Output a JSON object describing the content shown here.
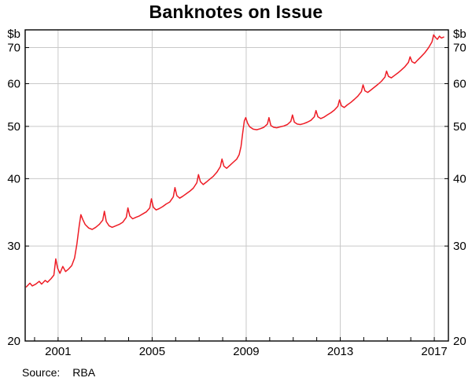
{
  "title": "Banknotes on Issue",
  "source": {
    "label": "Source:",
    "value": "RBA"
  },
  "chart_data": {
    "type": "line",
    "title": "Banknotes on Issue",
    "unit_label": "$b",
    "y_scale": "log",
    "ylim": [
      20,
      75.5
    ],
    "y_ticks": [
      20,
      30,
      40,
      50,
      60,
      70
    ],
    "xlim": [
      1999.6,
      2017.6
    ],
    "x_gridlines": [
      2001,
      2005,
      2009,
      2013,
      2017
    ],
    "x_tick_labels": [
      "2001",
      "2005",
      "2009",
      "2013",
      "2017"
    ],
    "x_minor_ticks": [
      2000,
      2001,
      2002,
      2003,
      2004,
      2005,
      2006,
      2007,
      2008,
      2009,
      2010,
      2011,
      2012,
      2013,
      2014,
      2015,
      2016,
      2017
    ],
    "grid": true,
    "grid_color": "#c9c9c9",
    "frame_color": "#000000",
    "line_color": "#ee1c25",
    "legend": "none",
    "series": [
      {
        "name": "Banknotes on Issue ($b)",
        "points": [
          [
            1999.65,
            25.2
          ],
          [
            1999.8,
            25.6
          ],
          [
            1999.9,
            25.3
          ],
          [
            2000.05,
            25.5
          ],
          [
            2000.2,
            25.8
          ],
          [
            2000.3,
            25.5
          ],
          [
            2000.45,
            25.9
          ],
          [
            2000.55,
            25.7
          ],
          [
            2000.7,
            26.1
          ],
          [
            2000.82,
            26.5
          ],
          [
            2000.9,
            28.4
          ],
          [
            2000.98,
            27.3
          ],
          [
            2001.08,
            26.7
          ],
          [
            2001.2,
            27.5
          ],
          [
            2001.32,
            26.9
          ],
          [
            2001.45,
            27.2
          ],
          [
            2001.58,
            27.6
          ],
          [
            2001.7,
            28.5
          ],
          [
            2001.8,
            30.3
          ],
          [
            2001.9,
            32.7
          ],
          [
            2001.97,
            34.3
          ],
          [
            2002.05,
            33.6
          ],
          [
            2002.15,
            32.9
          ],
          [
            2002.3,
            32.4
          ],
          [
            2002.45,
            32.2
          ],
          [
            2002.6,
            32.5
          ],
          [
            2002.75,
            32.9
          ],
          [
            2002.9,
            33.5
          ],
          [
            2002.97,
            34.8
          ],
          [
            2003.05,
            33.3
          ],
          [
            2003.17,
            32.7
          ],
          [
            2003.3,
            32.5
          ],
          [
            2003.45,
            32.7
          ],
          [
            2003.6,
            32.9
          ],
          [
            2003.75,
            33.2
          ],
          [
            2003.9,
            33.9
          ],
          [
            2003.97,
            35.3
          ],
          [
            2004.05,
            34.1
          ],
          [
            2004.17,
            33.7
          ],
          [
            2004.3,
            33.9
          ],
          [
            2004.45,
            34.1
          ],
          [
            2004.6,
            34.4
          ],
          [
            2004.75,
            34.7
          ],
          [
            2004.9,
            35.3
          ],
          [
            2004.97,
            36.7
          ],
          [
            2005.05,
            35.4
          ],
          [
            2005.17,
            35.0
          ],
          [
            2005.3,
            35.2
          ],
          [
            2005.45,
            35.5
          ],
          [
            2005.6,
            35.9
          ],
          [
            2005.75,
            36.2
          ],
          [
            2005.9,
            37.0
          ],
          [
            2005.97,
            38.5
          ],
          [
            2006.05,
            37.2
          ],
          [
            2006.17,
            36.8
          ],
          [
            2006.3,
            37.1
          ],
          [
            2006.45,
            37.5
          ],
          [
            2006.6,
            37.9
          ],
          [
            2006.75,
            38.4
          ],
          [
            2006.9,
            39.3
          ],
          [
            2006.97,
            40.7
          ],
          [
            2007.05,
            39.5
          ],
          [
            2007.17,
            39.0
          ],
          [
            2007.3,
            39.4
          ],
          [
            2007.45,
            39.9
          ],
          [
            2007.6,
            40.4
          ],
          [
            2007.75,
            41.1
          ],
          [
            2007.9,
            42.1
          ],
          [
            2007.97,
            43.5
          ],
          [
            2008.05,
            42.2
          ],
          [
            2008.17,
            41.8
          ],
          [
            2008.3,
            42.3
          ],
          [
            2008.45,
            42.9
          ],
          [
            2008.6,
            43.5
          ],
          [
            2008.7,
            44.3
          ],
          [
            2008.78,
            45.9
          ],
          [
            2008.85,
            48.6
          ],
          [
            2008.92,
            51.2
          ],
          [
            2008.98,
            51.9
          ],
          [
            2009.06,
            50.7
          ],
          [
            2009.15,
            49.9
          ],
          [
            2009.3,
            49.4
          ],
          [
            2009.45,
            49.3
          ],
          [
            2009.6,
            49.5
          ],
          [
            2009.75,
            49.8
          ],
          [
            2009.9,
            50.5
          ],
          [
            2009.97,
            51.9
          ],
          [
            2010.05,
            50.2
          ],
          [
            2010.17,
            49.8
          ],
          [
            2010.3,
            49.7
          ],
          [
            2010.45,
            49.9
          ],
          [
            2010.6,
            50.1
          ],
          [
            2010.75,
            50.4
          ],
          [
            2010.9,
            51.1
          ],
          [
            2010.97,
            52.5
          ],
          [
            2011.05,
            50.9
          ],
          [
            2011.17,
            50.5
          ],
          [
            2011.3,
            50.4
          ],
          [
            2011.45,
            50.6
          ],
          [
            2011.6,
            50.9
          ],
          [
            2011.75,
            51.3
          ],
          [
            2011.9,
            52.1
          ],
          [
            2011.97,
            53.5
          ],
          [
            2012.05,
            52.1
          ],
          [
            2012.17,
            51.7
          ],
          [
            2012.3,
            52.0
          ],
          [
            2012.45,
            52.5
          ],
          [
            2012.6,
            53.0
          ],
          [
            2012.75,
            53.6
          ],
          [
            2012.9,
            54.5
          ],
          [
            2012.97,
            56.0
          ],
          [
            2013.05,
            54.6
          ],
          [
            2013.17,
            54.2
          ],
          [
            2013.3,
            54.8
          ],
          [
            2013.45,
            55.4
          ],
          [
            2013.6,
            56.1
          ],
          [
            2013.75,
            56.9
          ],
          [
            2013.9,
            58.0
          ],
          [
            2013.97,
            59.7
          ],
          [
            2014.05,
            58.2
          ],
          [
            2014.17,
            57.8
          ],
          [
            2014.3,
            58.4
          ],
          [
            2014.45,
            59.1
          ],
          [
            2014.6,
            59.8
          ],
          [
            2014.75,
            60.6
          ],
          [
            2014.9,
            61.7
          ],
          [
            2014.97,
            63.3
          ],
          [
            2015.05,
            61.9
          ],
          [
            2015.17,
            61.5
          ],
          [
            2015.3,
            62.1
          ],
          [
            2015.45,
            62.8
          ],
          [
            2015.6,
            63.6
          ],
          [
            2015.75,
            64.5
          ],
          [
            2015.9,
            65.7
          ],
          [
            2015.97,
            67.3
          ],
          [
            2016.05,
            65.9
          ],
          [
            2016.17,
            65.5
          ],
          [
            2016.3,
            66.4
          ],
          [
            2016.45,
            67.4
          ],
          [
            2016.6,
            68.5
          ],
          [
            2016.75,
            69.9
          ],
          [
            2016.9,
            71.7
          ],
          [
            2016.97,
            73.9
          ],
          [
            2017.05,
            73.1
          ],
          [
            2017.13,
            72.5
          ],
          [
            2017.22,
            73.5
          ],
          [
            2017.3,
            72.9
          ],
          [
            2017.4,
            73.2
          ]
        ]
      }
    ]
  }
}
